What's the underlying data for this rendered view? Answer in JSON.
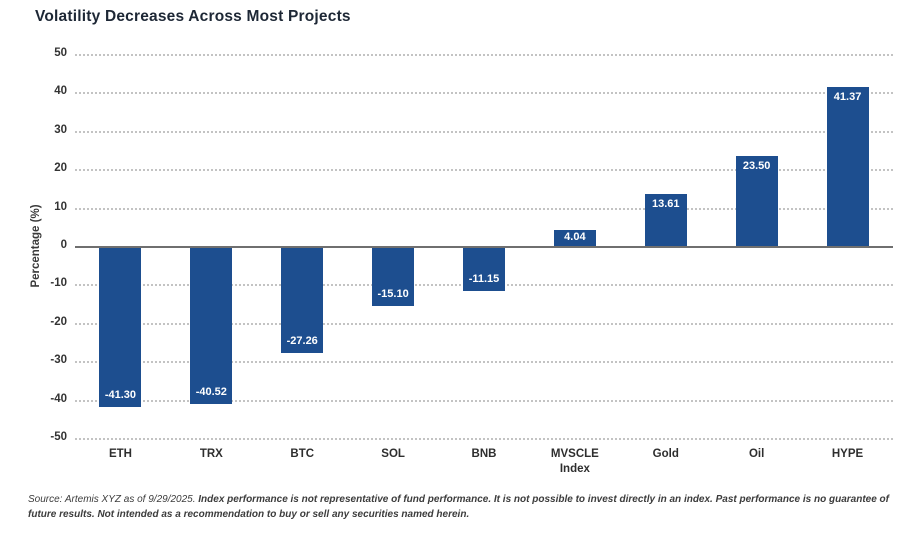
{
  "title": "Volatility Decreases Across Most Projects",
  "chart_data": {
    "type": "bar",
    "title": "Volatility Decreases Across Most Projects",
    "categories": [
      "ETH",
      "TRX",
      "BTC",
      "SOL",
      "BNB",
      "MVSCLE Index",
      "Gold",
      "Oil",
      "HYPE"
    ],
    "values": [
      -41.3,
      -40.52,
      -27.26,
      -15.1,
      -11.15,
      4.04,
      13.61,
      23.5,
      41.37
    ],
    "value_labels": [
      "-41.30",
      "-40.52",
      "-27.26",
      "-15.10",
      "-11.15",
      "4.04",
      "13.61",
      "23.50",
      "41.37"
    ],
    "xlabel": "",
    "ylabel": "Percentage (%)",
    "ylim": [
      -50,
      50
    ],
    "yticks": [
      50,
      40,
      30,
      20,
      10,
      0,
      -10,
      -20,
      -30,
      -40,
      -50
    ],
    "grid": "horizontal dotted, solid zero baseline",
    "legend": "none",
    "bar_color": "#1d4e8f",
    "value_label_color": "#ffffff",
    "gridline_color": "#c3c3c3",
    "zero_line_color": "#6f6f6f"
  },
  "footer": {
    "source": "Source: Artemis XYZ as of 9/29/2025.",
    "disclaimer": "Index performance is not representative of fund performance. It is not possible to invest directly in an index. Past performance is no guarantee of future results. Not intended as a recommendation to buy or sell any securities named herein."
  }
}
